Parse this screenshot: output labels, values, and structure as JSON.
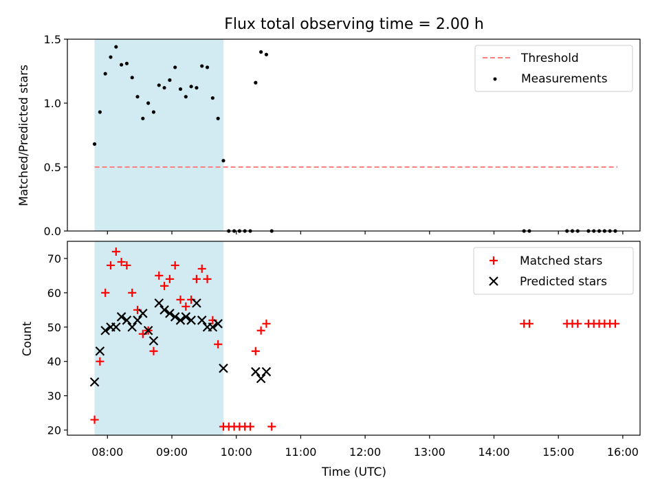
{
  "title": "Flux total observing time = 2.00 h",
  "xlabel": "Time (UTC)",
  "colors": {
    "threshold": "#ff7f7f",
    "measurements": "#000000",
    "matched": "#ff0000",
    "predicted": "#000000",
    "shade": "#add8e6"
  },
  "shaded_span": [
    "07:48",
    "09:48"
  ],
  "chart_data": [
    {
      "type": "scatter",
      "ylabel": "Matched/Predicted stars",
      "ylim": [
        0,
        1.5
      ],
      "yticks": [
        0.0,
        0.5,
        1.0,
        1.5
      ],
      "ytick_labels": [
        "0.0",
        "0.5",
        "1.0",
        "1.5"
      ],
      "threshold": {
        "name": "Threshold",
        "value": 0.5,
        "x_range": [
          "07:48",
          "15:55"
        ]
      },
      "series": [
        {
          "name": "Measurements",
          "x": [
            "07:48",
            "07:53",
            "07:58",
            "08:03",
            "08:08",
            "08:13",
            "08:18",
            "08:23",
            "08:28",
            "08:33",
            "08:38",
            "08:43",
            "08:48",
            "08:53",
            "08:58",
            "09:03",
            "09:08",
            "09:13",
            "09:18",
            "09:23",
            "09:28",
            "09:33",
            "09:38",
            "09:43",
            "09:48",
            "09:53",
            "09:58",
            "10:03",
            "10:08",
            "10:13",
            "10:18",
            "10:23",
            "10:28",
            "10:33",
            "14:28",
            "14:33",
            "15:08",
            "15:13",
            "15:18",
            "15:28",
            "15:33",
            "15:38",
            "15:43",
            "15:48",
            "15:53"
          ],
          "y": [
            0.68,
            0.93,
            1.23,
            1.36,
            1.44,
            1.3,
            1.31,
            1.2,
            1.05,
            0.88,
            1.0,
            0.93,
            1.14,
            1.12,
            1.18,
            1.28,
            1.11,
            1.05,
            1.13,
            1.12,
            1.29,
            1.28,
            1.04,
            0.88,
            0.55,
            0,
            0,
            0,
            0,
            0,
            1.16,
            1.4,
            1.38,
            0,
            0,
            0,
            0,
            0,
            0,
            0,
            0,
            0,
            0,
            0,
            0
          ]
        }
      ]
    },
    {
      "type": "scatter",
      "ylabel": "Count",
      "ylim": [
        18.5,
        75
      ],
      "yticks": [
        20,
        30,
        40,
        50,
        60,
        70
      ],
      "ytick_labels": [
        "20",
        "30",
        "40",
        "50",
        "60",
        "70"
      ],
      "xticks": [
        "08:00",
        "09:00",
        "10:00",
        "11:00",
        "12:00",
        "13:00",
        "14:00",
        "15:00",
        "16:00"
      ],
      "series": [
        {
          "name": "Matched stars",
          "x": [
            "07:48",
            "07:53",
            "07:58",
            "08:03",
            "08:08",
            "08:13",
            "08:18",
            "08:23",
            "08:28",
            "08:33",
            "08:38",
            "08:43",
            "08:48",
            "08:53",
            "08:58",
            "09:03",
            "09:08",
            "09:13",
            "09:18",
            "09:23",
            "09:28",
            "09:33",
            "09:38",
            "09:43",
            "09:48",
            "09:53",
            "09:58",
            "10:03",
            "10:08",
            "10:13",
            "10:18",
            "10:23",
            "10:28",
            "10:33",
            "14:28",
            "14:33",
            "15:08",
            "15:13",
            "15:18",
            "15:28",
            "15:33",
            "15:38",
            "15:43",
            "15:48",
            "15:53"
          ],
          "y": [
            23,
            40,
            60,
            68,
            72,
            69,
            68,
            60,
            55,
            48,
            49,
            43,
            65,
            62,
            64,
            68,
            58,
            56,
            58,
            64,
            67,
            64,
            52,
            45,
            21,
            21,
            21,
            21,
            21,
            21,
            43,
            49,
            51,
            21,
            51,
            51,
            51,
            51,
            51,
            51,
            51,
            51,
            51,
            51,
            51
          ]
        },
        {
          "name": "Predicted stars",
          "x": [
            "07:48",
            "07:53",
            "07:58",
            "08:03",
            "08:08",
            "08:13",
            "08:18",
            "08:23",
            "08:28",
            "08:33",
            "08:38",
            "08:43",
            "08:48",
            "08:53",
            "08:58",
            "09:03",
            "09:08",
            "09:13",
            "09:18",
            "09:23",
            "09:28",
            "09:33",
            "09:38",
            "09:43",
            "09:48",
            "10:18",
            "10:23",
            "10:28"
          ],
          "y": [
            34,
            43,
            49,
            50,
            50,
            53,
            52,
            50,
            52,
            54,
            49,
            46,
            57,
            55,
            54,
            53,
            52,
            53,
            52,
            57,
            52,
            50,
            50,
            51,
            38,
            37,
            35,
            37
          ]
        }
      ]
    }
  ]
}
